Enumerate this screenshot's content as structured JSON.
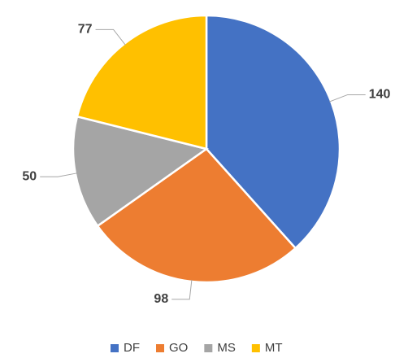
{
  "chart_data": {
    "type": "pie",
    "categories": [
      "DF",
      "GO",
      "MS",
      "MT"
    ],
    "values": [
      140,
      98,
      50,
      77
    ],
    "colors": [
      "#4472c4",
      "#ed7d31",
      "#a5a5a5",
      "#ffc000"
    ],
    "legend": "bottom"
  }
}
